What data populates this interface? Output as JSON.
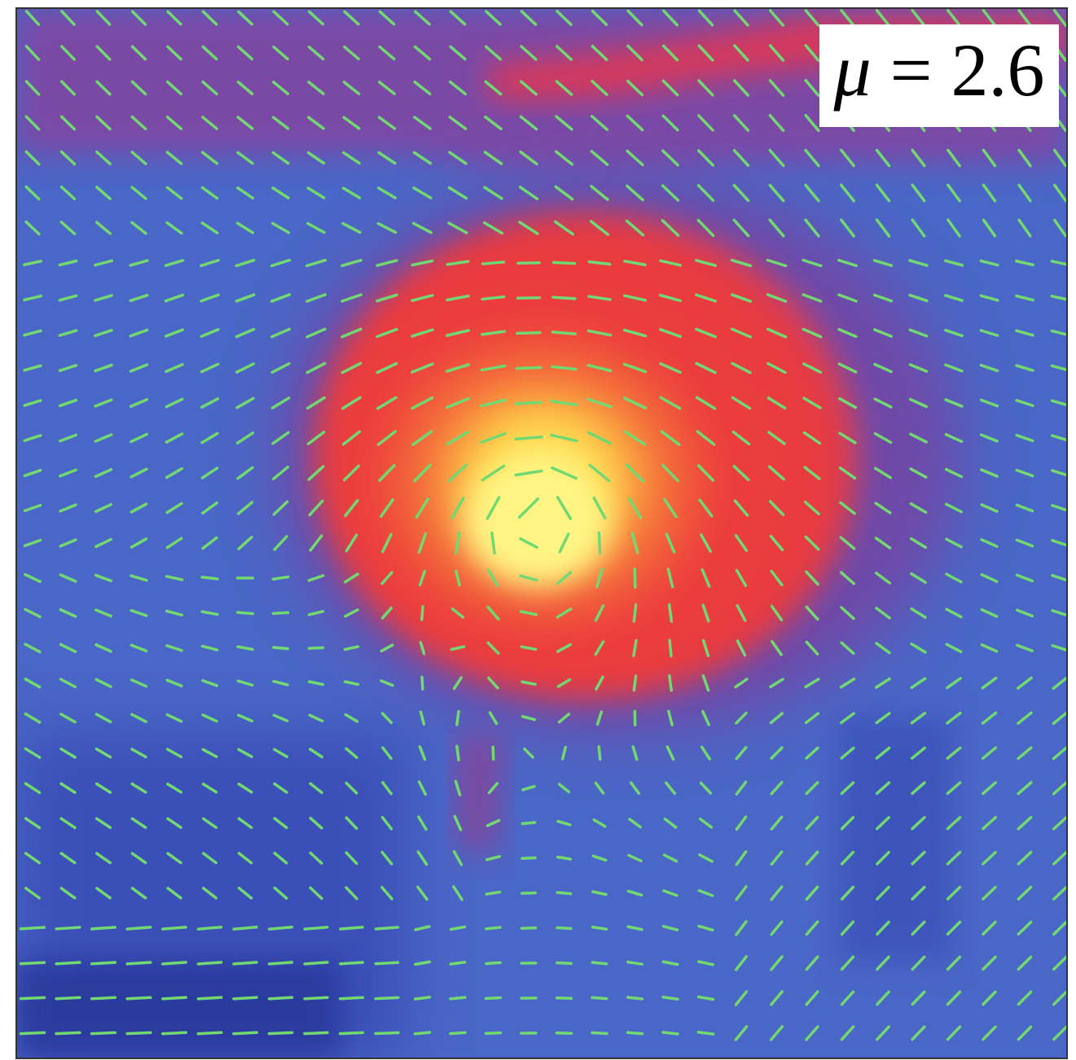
{
  "label": {
    "symbol": "μ",
    "text": " = 2.6"
  }
}
